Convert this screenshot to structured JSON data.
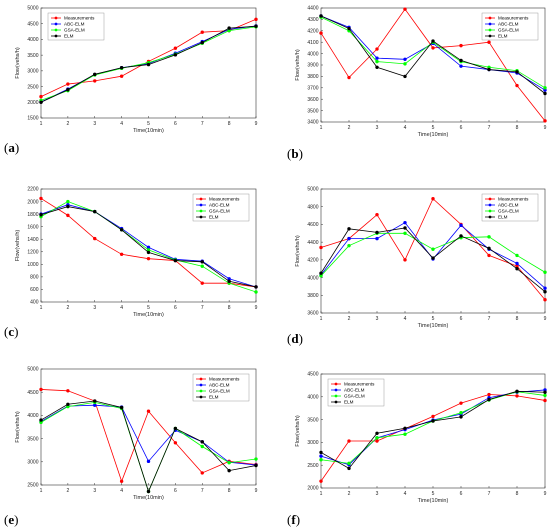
{
  "legend_labels": [
    "Measurements",
    "ABC-ELM",
    "GSA-ELM",
    "ELM"
  ],
  "series_colors": [
    "#ff0000",
    "#0000ff",
    "#00ff00",
    "#000000"
  ],
  "chart_data": [
    {
      "panel": "(a)",
      "type": "line",
      "legend": "top-left",
      "xlabel": "Time(10min)",
      "ylabel": "Flow(vehs/h)",
      "x": [
        1,
        2,
        3,
        4,
        5,
        6,
        7,
        8,
        9
      ],
      "xlim": [
        1,
        9
      ],
      "ylim": [
        1500,
        5000
      ],
      "yticks": [
        1500,
        2000,
        2500,
        3000,
        3500,
        4000,
        4500,
        5000
      ],
      "series": [
        {
          "name": "Measurements",
          "values": [
            2180,
            2580,
            2680,
            2830,
            3300,
            3720,
            4230,
            4280,
            4640
          ]
        },
        {
          "name": "ABC-ELM",
          "values": [
            2010,
            2420,
            2880,
            3100,
            3230,
            3560,
            3930,
            4320,
            4430
          ]
        },
        {
          "name": "GSA-ELM",
          "values": [
            2060,
            2370,
            2870,
            3080,
            3260,
            3530,
            3880,
            4280,
            4400
          ]
        },
        {
          "name": "ELM",
          "values": [
            2000,
            2400,
            2890,
            3100,
            3200,
            3510,
            3900,
            4360,
            4420
          ]
        }
      ]
    },
    {
      "panel": "(b)",
      "type": "line",
      "legend": "top-right",
      "xlabel": "Time(10min)",
      "ylabel": "Flow(vehs/h)",
      "x": [
        1,
        2,
        3,
        4,
        5,
        6,
        7,
        8,
        9
      ],
      "xlim": [
        1,
        9
      ],
      "ylim": [
        3400,
        4400
      ],
      "yticks": [
        3400,
        3500,
        3600,
        3700,
        3800,
        3900,
        4000,
        4100,
        4200,
        4300,
        4400
      ],
      "series": [
        {
          "name": "Measurements",
          "values": [
            4180,
            3790,
            4040,
            4390,
            4050,
            4070,
            4100,
            3720,
            3410
          ]
        },
        {
          "name": "ABC-ELM",
          "values": [
            4330,
            4230,
            3960,
            3950,
            4090,
            3890,
            3860,
            3830,
            3680
          ]
        },
        {
          "name": "GSA-ELM",
          "values": [
            4320,
            4200,
            3930,
            3910,
            4100,
            3930,
            3880,
            3850,
            3700
          ]
        },
        {
          "name": "ELM",
          "values": [
            4330,
            4220,
            3880,
            3800,
            4110,
            3940,
            3860,
            3840,
            3650
          ]
        }
      ]
    },
    {
      "panel": "(c)",
      "type": "line",
      "legend": "top-right",
      "xlabel": "Time(10min)",
      "ylabel": "Flow(vehs/h)",
      "x": [
        1,
        2,
        3,
        4,
        5,
        6,
        7,
        8,
        9
      ],
      "xlim": [
        1,
        9
      ],
      "ylim": [
        400,
        2200
      ],
      "yticks": [
        400,
        600,
        800,
        1000,
        1200,
        1400,
        1600,
        1800,
        2000,
        2200
      ],
      "series": [
        {
          "name": "Measurements",
          "values": [
            2050,
            1780,
            1410,
            1160,
            1090,
            1060,
            700,
            700,
            640
          ]
        },
        {
          "name": "ABC-ELM",
          "values": [
            1800,
            1950,
            1840,
            1570,
            1270,
            1080,
            1050,
            770,
            640
          ]
        },
        {
          "name": "GSA-ELM",
          "values": [
            1760,
            2000,
            1840,
            1550,
            1230,
            1070,
            970,
            700,
            560
          ]
        },
        {
          "name": "ELM",
          "values": [
            1790,
            1920,
            1840,
            1550,
            1190,
            1060,
            1040,
            730,
            640
          ]
        }
      ]
    },
    {
      "panel": "(d)",
      "type": "line",
      "legend": "top-right",
      "xlabel": "Time(10min)",
      "ylabel": "Flow(vehs/h)",
      "x": [
        1,
        2,
        3,
        4,
        5,
        6,
        7,
        8,
        9
      ],
      "xlim": [
        1,
        9
      ],
      "ylim": [
        3600,
        5000
      ],
      "yticks": [
        3600,
        3800,
        4000,
        4200,
        4400,
        4600,
        4800,
        5000
      ],
      "series": [
        {
          "name": "Measurements",
          "values": [
            4340,
            4440,
            4710,
            4200,
            4890,
            4600,
            4250,
            4130,
            3750
          ]
        },
        {
          "name": "ABC-ELM",
          "values": [
            4030,
            4440,
            4440,
            4620,
            4210,
            4590,
            4320,
            4160,
            3880
          ]
        },
        {
          "name": "GSA-ELM",
          "values": [
            4020,
            4360,
            4500,
            4500,
            4320,
            4450,
            4460,
            4250,
            4060
          ]
        },
        {
          "name": "ELM",
          "values": [
            4050,
            4550,
            4510,
            4560,
            4220,
            4470,
            4330,
            4100,
            3840
          ]
        }
      ]
    },
    {
      "panel": "(e)",
      "type": "line",
      "legend": "top-right",
      "xlabel": "Time(10min)",
      "ylabel": "Flow(vehs/h)",
      "x": [
        1,
        2,
        3,
        4,
        5,
        6,
        7,
        8,
        9
      ],
      "xlim": [
        1,
        9
      ],
      "ylim": [
        2500,
        5000
      ],
      "yticks": [
        2500,
        3000,
        3500,
        4000,
        4500,
        5000
      ],
      "series": [
        {
          "name": "Measurements",
          "values": [
            4560,
            4530,
            4310,
            2580,
            4090,
            3410,
            2760,
            3010,
            2940
          ]
        },
        {
          "name": "ABC-ELM",
          "values": [
            3870,
            4200,
            4220,
            4180,
            3010,
            3680,
            3430,
            2990,
            2930
          ]
        },
        {
          "name": "GSA-ELM",
          "values": [
            3850,
            4190,
            4280,
            4150,
            2360,
            3720,
            3330,
            2980,
            3060
          ]
        },
        {
          "name": "ELM",
          "values": [
            3900,
            4240,
            4310,
            4170,
            2360,
            3720,
            3430,
            2810,
            2920
          ]
        }
      ]
    },
    {
      "panel": "(f)",
      "type": "line",
      "legend": "top-left",
      "xlabel": "Time(10min)",
      "ylabel": "Flow(vehs/h)",
      "x": [
        1,
        2,
        3,
        4,
        5,
        6,
        7,
        8,
        9
      ],
      "xlim": [
        1,
        9
      ],
      "ylim": [
        2000,
        4500
      ],
      "yticks": [
        2000,
        2500,
        3000,
        3500,
        4000,
        4500
      ],
      "series": [
        {
          "name": "Measurements",
          "values": [
            2150,
            3030,
            3030,
            3300,
            3570,
            3860,
            4050,
            4020,
            3920
          ]
        },
        {
          "name": "ABC-ELM",
          "values": [
            2700,
            2510,
            3100,
            3280,
            3490,
            3620,
            3980,
            4100,
            4150
          ]
        },
        {
          "name": "GSA-ELM",
          "values": [
            2620,
            2540,
            3100,
            3180,
            3470,
            3650,
            3930,
            4110,
            4030
          ]
        },
        {
          "name": "ELM",
          "values": [
            2780,
            2430,
            3200,
            3310,
            3470,
            3560,
            3940,
            4120,
            4100
          ]
        }
      ]
    }
  ]
}
